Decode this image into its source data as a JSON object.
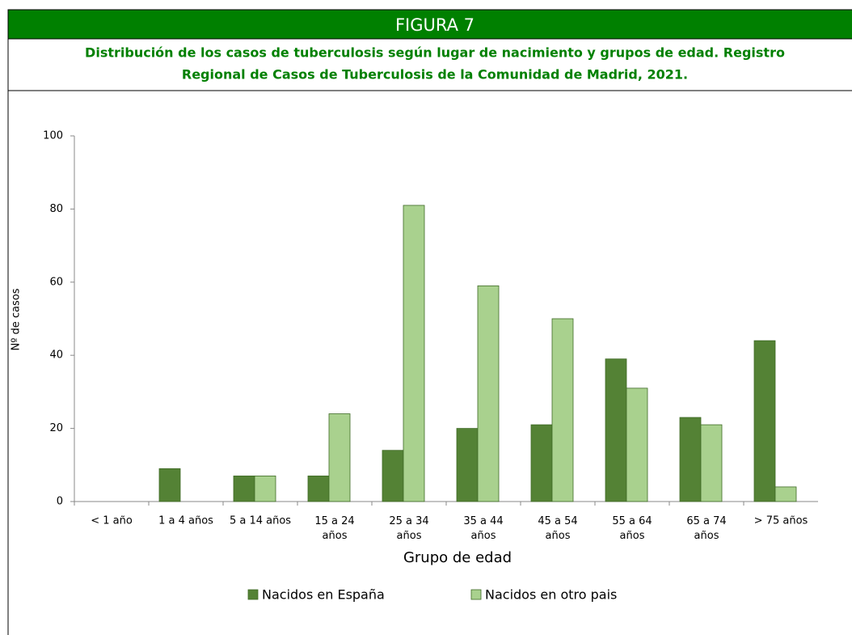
{
  "header": {
    "figure": "FIGURA 7",
    "subtitle_lines": [
      "Distribución de los casos de tuberculosis según lugar de nacimiento y grupos de edad. Registro",
      "Regional de Casos de Tuberculosis de la Comunidad de Madrid, 2021."
    ]
  },
  "chart_data": {
    "type": "bar",
    "x_label": "Grupo de edad",
    "y_label": "Nº de casos",
    "categories": [
      "< 1 año",
      "1 a 4 años",
      "5 a 14 años",
      "15 a 24 años",
      "25 a 34 años",
      "35 a 44 años",
      "45 a 54 años",
      "55 a 64 años",
      "65 a 74 años",
      "> 75 años"
    ],
    "series": [
      {
        "name": "Nacidos en España",
        "color": "#548235",
        "values": [
          0,
          9,
          7,
          7,
          14,
          20,
          21,
          39,
          23,
          44
        ]
      },
      {
        "name": "Nacidos en otro pais",
        "color": "#a9d18e",
        "values": [
          0,
          0,
          7,
          24,
          81,
          59,
          50,
          31,
          21,
          4
        ]
      }
    ],
    "ylim": [
      0,
      100
    ],
    "yticks": [
      0,
      20,
      40,
      60,
      80,
      100
    ],
    "grid": false,
    "legend": "bottom"
  }
}
